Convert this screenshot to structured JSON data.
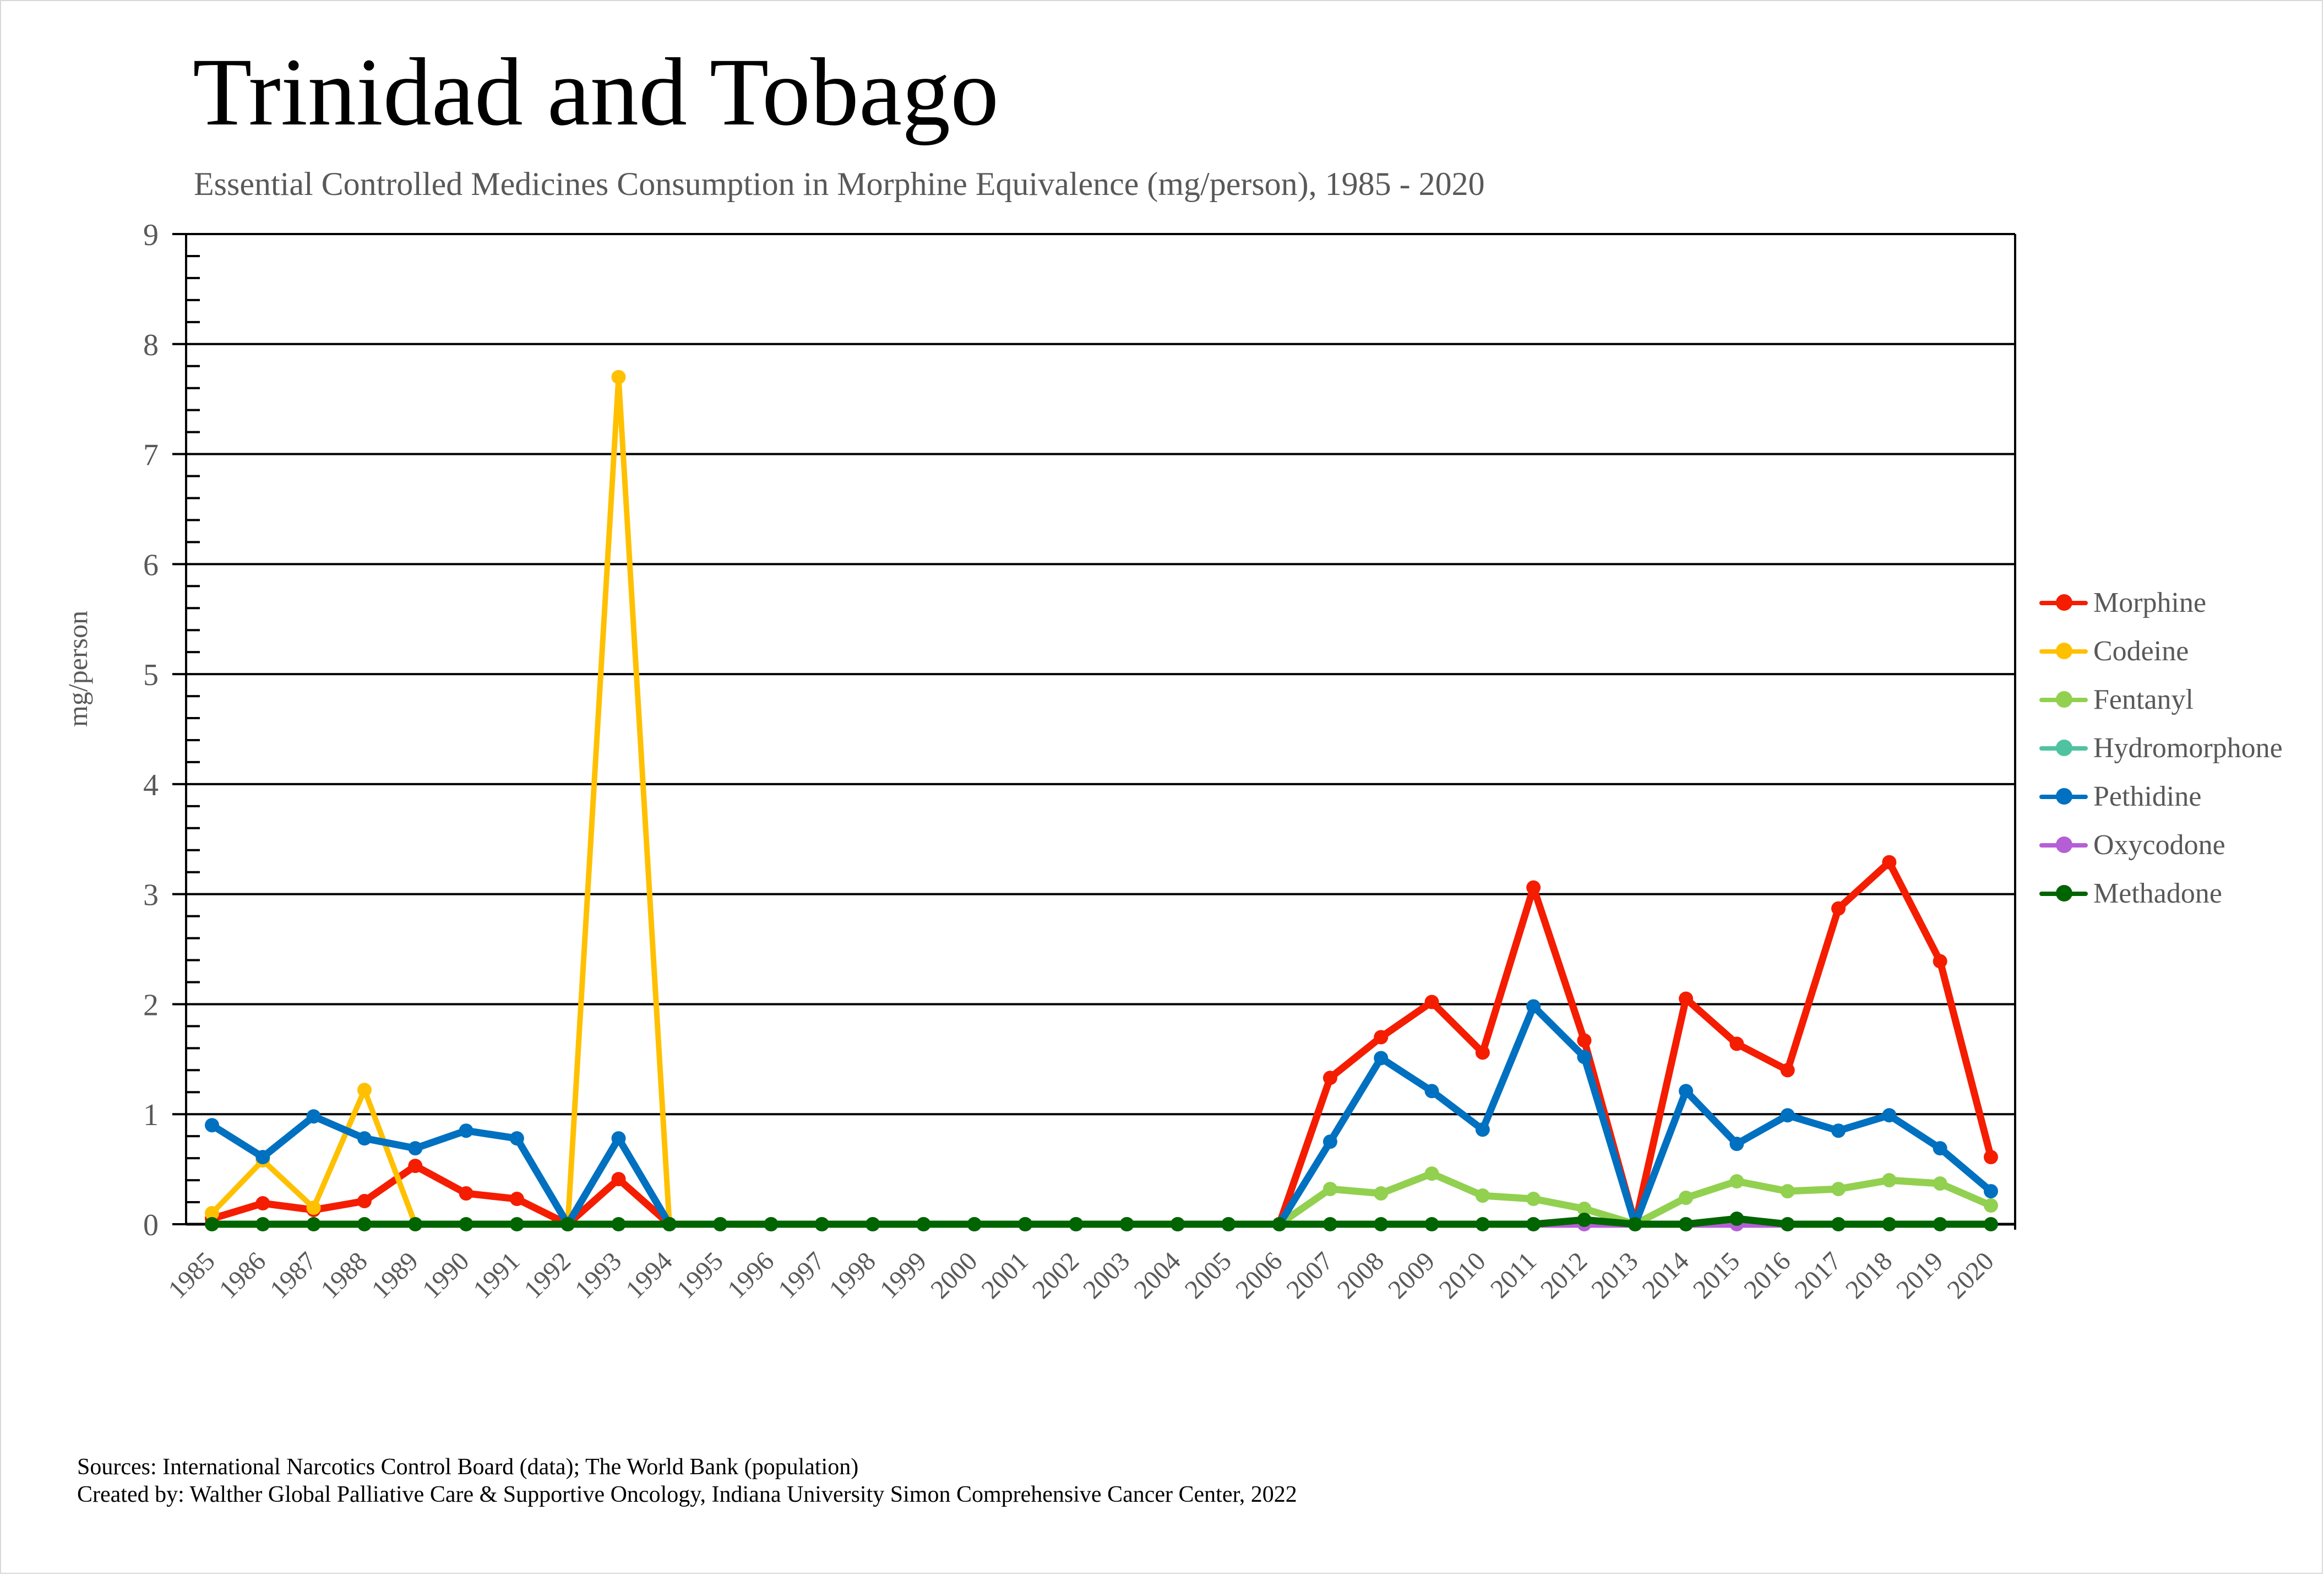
{
  "chart_data": {
    "type": "line",
    "title": "Trinidad and Tobago",
    "subtitle": "Essential Controlled Medicines Consumption in Morphine Equivalence (mg/person), 1985 - 2020",
    "xlabel": "",
    "ylabel": "mg/person",
    "ylim": [
      0,
      9
    ],
    "yticks": [
      "0",
      "1",
      "2",
      "3",
      "4",
      "5",
      "6",
      "7",
      "8",
      "9"
    ],
    "y_minor_step": 0.2,
    "grid": true,
    "legend_position": "right",
    "x": [
      "1985",
      "1986",
      "1987",
      "1988",
      "1989",
      "1990",
      "1991",
      "1992",
      "1993",
      "1994",
      "1995",
      "1996",
      "1997",
      "1998",
      "1999",
      "2000",
      "2001",
      "2002",
      "2003",
      "2004",
      "2005",
      "2006",
      "2007",
      "2008",
      "2009",
      "2010",
      "2011",
      "2012",
      "2013",
      "2014",
      "2015",
      "2016",
      "2017",
      "2018",
      "2019",
      "2020"
    ],
    "series": [
      {
        "name": "Morphine",
        "color": "#f41d00",
        "values": [
          0.05,
          0.19,
          0.13,
          0.21,
          0.53,
          0.28,
          0.23,
          0,
          0.41,
          0,
          0,
          0,
          0,
          0,
          0,
          0,
          0,
          0,
          0,
          0,
          0,
          0,
          1.33,
          1.7,
          2.02,
          1.56,
          3.06,
          1.67,
          0,
          2.05,
          1.64,
          1.4,
          2.87,
          3.29,
          2.39,
          0.61
        ]
      },
      {
        "name": "Codeine",
        "color": "#ffc000",
        "values": [
          0.1,
          0.58,
          0.15,
          1.22,
          0,
          null,
          null,
          0,
          7.7,
          0,
          null,
          null,
          null,
          null,
          null,
          null,
          null,
          null,
          null,
          null,
          null,
          null,
          null,
          null,
          null,
          null,
          null,
          null,
          null,
          null,
          null,
          null,
          null,
          null,
          null,
          null
        ]
      },
      {
        "name": "Fentanyl",
        "color": "#92d050",
        "values": [
          null,
          null,
          null,
          null,
          null,
          null,
          null,
          null,
          null,
          null,
          null,
          null,
          null,
          null,
          null,
          null,
          null,
          null,
          null,
          null,
          null,
          0,
          0.32,
          0.28,
          0.46,
          0.26,
          0.23,
          0.14,
          0,
          0.24,
          0.39,
          0.3,
          0.32,
          0.4,
          0.37,
          0.17
        ]
      },
      {
        "name": "Hydromorphone",
        "color": "#4fc3a1",
        "values": [
          null,
          null,
          null,
          null,
          null,
          null,
          null,
          null,
          null,
          null,
          null,
          null,
          null,
          null,
          null,
          null,
          null,
          null,
          null,
          null,
          null,
          null,
          null,
          null,
          null,
          null,
          null,
          null,
          null,
          null,
          null,
          null,
          null,
          null,
          null,
          null
        ]
      },
      {
        "name": "Pethidine",
        "color": "#0070c0",
        "values": [
          0.9,
          0.61,
          0.98,
          0.78,
          0.69,
          0.85,
          0.78,
          0,
          0.78,
          0,
          0,
          0,
          0,
          0,
          0,
          0,
          0,
          0,
          0,
          0,
          0,
          0,
          0.75,
          1.51,
          1.21,
          0.86,
          1.98,
          1.52,
          0,
          1.21,
          0.73,
          0.99,
          0.85,
          0.99,
          0.69,
          0.3
        ]
      },
      {
        "name": "Oxycodone",
        "color": "#b55fd6",
        "values": [
          null,
          null,
          null,
          null,
          null,
          null,
          null,
          null,
          null,
          null,
          null,
          null,
          null,
          null,
          null,
          null,
          null,
          null,
          null,
          null,
          null,
          null,
          null,
          null,
          null,
          null,
          0,
          0,
          0,
          0,
          0,
          0,
          null,
          null,
          null,
          null
        ]
      },
      {
        "name": "Methadone",
        "color": "#006400",
        "values": [
          0,
          0,
          0,
          0,
          0,
          0,
          0,
          0,
          0,
          0,
          0,
          0,
          0,
          0,
          0,
          0,
          0,
          0,
          0,
          0,
          0,
          0,
          0,
          0,
          0,
          0,
          0,
          0.04,
          0,
          0,
          0.05,
          0,
          0,
          0,
          0,
          0
        ]
      }
    ]
  },
  "footer": {
    "sources": "Sources: International Narcotics Control Board (data); The World Bank (population)",
    "created_by": "Created by: Walther Global Palliative Care & Supportive Oncology, Indiana University Simon Comprehensive Cancer Center, 2022"
  }
}
